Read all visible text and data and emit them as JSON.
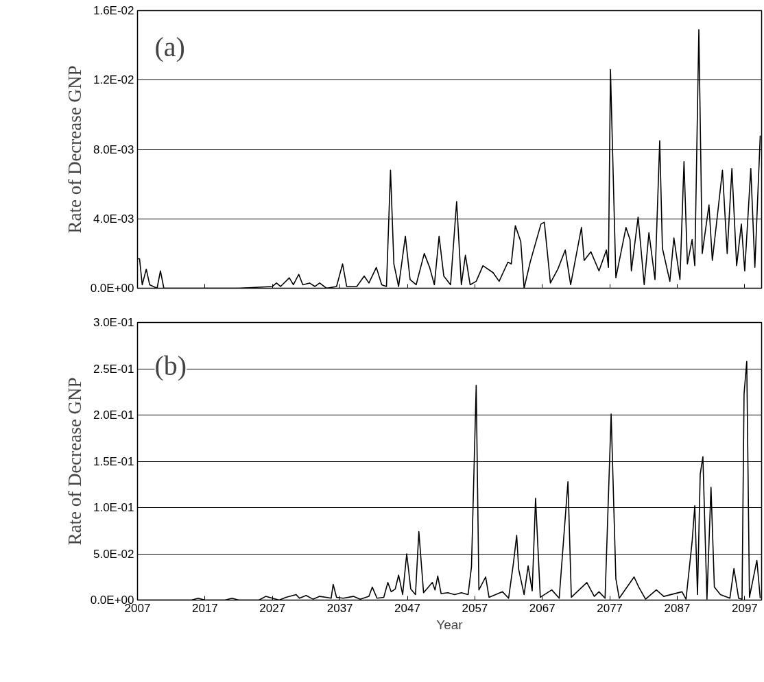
{
  "chart_data": [
    {
      "type": "line",
      "ylabel": "Rate of Decrease GNP",
      "annotations": [
        "(a)"
      ],
      "xlim": [
        2007,
        2099.5
      ],
      "xticks": [
        2007,
        2017,
        2027,
        2037,
        2047,
        2057,
        2067,
        2077,
        2087,
        2097
      ],
      "tick_labels": "y",
      "ylim": [
        0,
        0.016
      ],
      "yticks": [
        {
          "value": 0,
          "label": "0.0E+00"
        },
        {
          "value": 0.004,
          "label": "4.0E-03"
        },
        {
          "value": 0.008,
          "label": "8.0E-03"
        },
        {
          "value": 0.012,
          "label": "1.2E-02"
        },
        {
          "value": 0.016,
          "label": "1.6E-02"
        }
      ],
      "grid": "y",
      "marker": "none",
      "line_style": "solid",
      "series": [
        {
          "color": "#000000",
          "x": [
            2007,
            2007.3,
            2007.7,
            2008.3,
            2008.8,
            2009.9,
            2010.4,
            2010.9,
            2016,
            2022,
            2027,
            2027.6,
            2028.2,
            2029.5,
            2030.1,
            2030.9,
            2031.5,
            2032.5,
            2033.3,
            2034,
            2035,
            2036.5,
            2037.4,
            2038,
            2039.5,
            2040.6,
            2041.3,
            2042.4,
            2043.2,
            2043.9,
            2044.5,
            2045,
            2045.7,
            2046.7,
            2047.4,
            2048.3,
            2049.5,
            2050.3,
            2051,
            2051.7,
            2052.4,
            2053.4,
            2054.3,
            2055,
            2055.6,
            2056.3,
            2057.2,
            2058.2,
            2059.7,
            2060.6,
            2061.9,
            2062.4,
            2063,
            2063.8,
            2064.3,
            2065.2,
            2066.8,
            2067.3,
            2068.2,
            2069.3,
            2070.4,
            2071.2,
            2072.8,
            2073.2,
            2074.2,
            2075.4,
            2076.5,
            2076.8,
            2077.1,
            2077.9,
            2079.4,
            2080,
            2080.2,
            2081.2,
            2082.1,
            2082.8,
            2083.7,
            2084.4,
            2084.8,
            2085.9,
            2086.5,
            2087.4,
            2088,
            2088.5,
            2089.2,
            2089.6,
            2090.2,
            2090.7,
            2091.7,
            2092.2,
            2093.7,
            2094.4,
            2095.1,
            2095.8,
            2096.5,
            2097,
            2097.9,
            2098.5,
            2099.3
          ],
          "values": [
            0.0017,
            0.0017,
            0.0002,
            0.0011,
            0.0002,
            0,
            0.001,
            0,
            0,
            0,
            0.0001,
            0.0003,
            0.0001,
            0.0006,
            0.0002,
            0.0008,
            0.0002,
            0.0003,
            0.0001,
            0.0003,
            0,
            0.0001,
            0.0014,
            0.0001,
            0.0001,
            0.0007,
            0.0003,
            0.0012,
            0.0002,
            0.0001,
            0.0068,
            0.0014,
            0.0001,
            0.003,
            0.0005,
            0.0002,
            0.002,
            0.0012,
            0.0002,
            0.003,
            0.0007,
            0.0002,
            0.005,
            0.0002,
            0.0019,
            0.0002,
            0.0004,
            0.0013,
            0.0009,
            0.0004,
            0.0015,
            0.0014,
            0.0036,
            0.0027,
            0,
            0.0015,
            0.0037,
            0.0038,
            0.0003,
            0.0011,
            0.0022,
            0.0002,
            0.0035,
            0.0016,
            0.0021,
            0.001,
            0.0022,
            0.0012,
            0.0126,
            0.0006,
            0.0035,
            0.0028,
            0.001,
            0.0041,
            0.0002,
            0.0032,
            0.0005,
            0.0085,
            0.0023,
            0.0004,
            0.0029,
            0.0005,
            0.0073,
            0.0014,
            0.0028,
            0.0013,
            0.0149,
            0.002,
            0.0048,
            0.0016,
            0.0068,
            0.002,
            0.0069,
            0.0013,
            0.0037,
            0.001,
            0.0069,
            0.0012,
            0.0088
          ]
        }
      ]
    },
    {
      "type": "line",
      "xlabel": "Year",
      "ylabel": "Rate of Decrease GNP",
      "annotations": [
        "(b)"
      ],
      "xlim": [
        2007,
        2099.5
      ],
      "xticks": [
        2007,
        2017,
        2027,
        2037,
        2047,
        2057,
        2067,
        2077,
        2087,
        2097
      ],
      "ylim": [
        0,
        0.3
      ],
      "yticks": [
        {
          "value": 0,
          "label": "0.0E+00"
        },
        {
          "value": 0.05,
          "label": "5.0E-02"
        },
        {
          "value": 0.1,
          "label": "1.0E-01"
        },
        {
          "value": 0.15,
          "label": "1.5E-01"
        },
        {
          "value": 0.2,
          "label": "2.0E-01"
        },
        {
          "value": 0.25,
          "label": "2.5E-01"
        },
        {
          "value": 0.3,
          "label": "3.0E-01"
        }
      ],
      "grid": "y",
      "marker": "none",
      "line_style": "solid",
      "series": [
        {
          "color": "#000000",
          "x": [
            2007,
            2015,
            2016,
            2017,
            2020,
            2021,
            2022,
            2025,
            2026,
            2028,
            2029,
            2030.5,
            2031,
            2032,
            2033,
            2034,
            2035,
            2035.7,
            2036,
            2036.5,
            2037.5,
            2039,
            2040,
            2041.3,
            2041.8,
            2042.5,
            2043.5,
            2044.1,
            2044.6,
            2045.2,
            2045.7,
            2046.3,
            2046.9,
            2047.5,
            2048.2,
            2048.7,
            2049.4,
            2050.7,
            2051.1,
            2051.5,
            2052,
            2053,
            2054,
            2055,
            2056,
            2056.5,
            2057.2,
            2057.6,
            2058.6,
            2059.1,
            2061.1,
            2062,
            2062.7,
            2063.2,
            2063.5,
            2064.3,
            2064.9,
            2065.5,
            2066,
            2066.7,
            2068.4,
            2069.5,
            2070.8,
            2071.3,
            2073.6,
            2074.7,
            2075.4,
            2076.3,
            2077.2,
            2077.9,
            2078.4,
            2080.6,
            2081.3,
            2082.3,
            2083.9,
            2085,
            2087.7,
            2088.3,
            2089.2,
            2089.6,
            2090,
            2090.4,
            2090.8,
            2091.4,
            2092,
            2092.5,
            2093.4,
            2094.8,
            2095.4,
            2096.1,
            2096.6,
            2096.9,
            2097.3,
            2097.7,
            2098.8,
            2099.3
          ],
          "values": [
            0,
            0,
            0.002,
            0,
            0,
            0.002,
            0,
            0,
            0.004,
            0,
            0.003,
            0.006,
            0.002,
            0.005,
            0.001,
            0.004,
            0.003,
            0.002,
            0.017,
            0.003,
            0.002,
            0.004,
            0.001,
            0.004,
            0.014,
            0.002,
            0.003,
            0.019,
            0.009,
            0.012,
            0.027,
            0.006,
            0.05,
            0.012,
            0.006,
            0.074,
            0.008,
            0.019,
            0.011,
            0.026,
            0.007,
            0.008,
            0.006,
            0.008,
            0.006,
            0.036,
            0.232,
            0.011,
            0.025,
            0.003,
            0.009,
            0.002,
            0.039,
            0.07,
            0.033,
            0.006,
            0.037,
            0.01,
            0.11,
            0.003,
            0.011,
            0.002,
            0.128,
            0.003,
            0.019,
            0.004,
            0.009,
            0.002,
            0.201,
            0.023,
            0.002,
            0.025,
            0.014,
            0.001,
            0.011,
            0.004,
            0.009,
            0.001,
            0.063,
            0.102,
            0.006,
            0.136,
            0.155,
            0.001,
            0.122,
            0.014,
            0.006,
            0.002,
            0.034,
            0.002,
            0.001,
            0.223,
            0.258,
            0.003,
            0.043,
            0.002
          ]
        }
      ]
    }
  ]
}
